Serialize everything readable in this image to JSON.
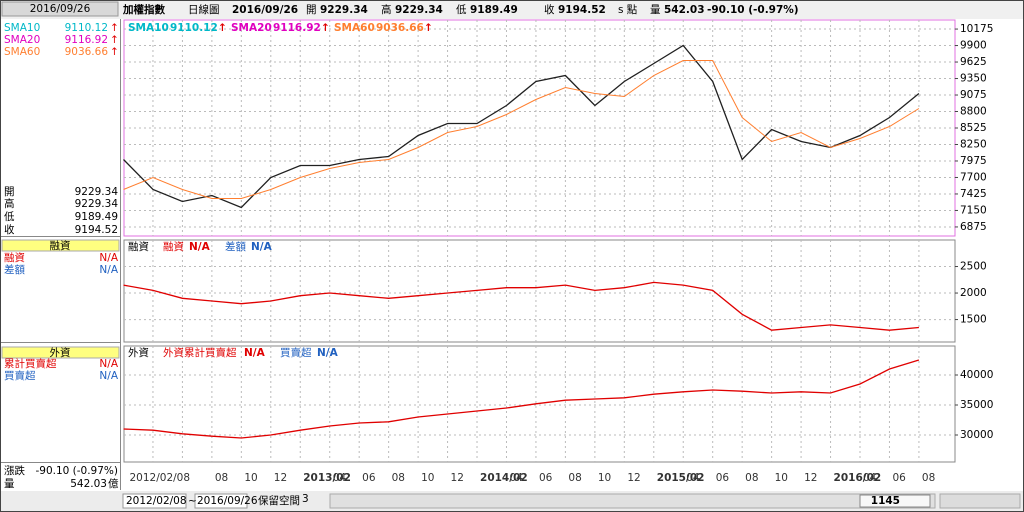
{
  "header": {
    "title": "加權指數",
    "period": "日線圖",
    "date": "2016/09/26",
    "open_label": "開",
    "open": 9229.34,
    "high_label": "高",
    "high": 9229.34,
    "low_label": "低",
    "low": 9189.49,
    "close_label": "收",
    "close": 9194.52,
    "unit": "s 點",
    "volume_label": "量",
    "volume": 542.03,
    "change": "-90.10 (-0.97%)"
  },
  "left_panel": {
    "change_label": "漲跌",
    "volume_unit": "億"
  },
  "chart_data": [
    {
      "type": "line",
      "trend_arrow": "↑",
      "categories": [
        "2012/02/08",
        null,
        null,
        "08",
        "10",
        "12",
        "2013/02",
        "04",
        "06",
        "08",
        "10",
        "12",
        "2014/02",
        "04",
        "06",
        "08",
        "10",
        "12",
        "2015/02",
        "04",
        "06",
        "08",
        "10",
        "12",
        "2016/02",
        "04",
        "06",
        "08"
      ],
      "ylim": [
        6724,
        10326
      ],
      "yticks": [
        6875,
        7150,
        7425,
        7700,
        7975,
        8250,
        8525,
        8800,
        9075,
        9350,
        9625,
        9900,
        10175
      ],
      "grid": true,
      "series": [
        {
          "color": "#202020",
          "values": [
            8000,
            7500,
            7300,
            7400,
            7200,
            7700,
            7900,
            7900,
            8000,
            8050,
            8400,
            8600,
            8600,
            8900,
            9300,
            9400,
            8900,
            9300,
            9600,
            9900,
            9300,
            8000,
            8500,
            8300,
            8200,
            8400,
            8700,
            9100
          ]
        },
        {
          "name": "SMA10",
          "last": 9110.12,
          "color": "#00b8c8"
        },
        {
          "name": "SMA20",
          "last": 9116.92,
          "color": "#e000c0"
        },
        {
          "name": "SMA60",
          "last": 9036.66,
          "color": "#ff7f30",
          "values": [
            7500,
            7700,
            7500,
            7350,
            7350,
            7500,
            7700,
            7850,
            7950,
            8000,
            8200,
            8450,
            8550,
            8750,
            9000,
            9200,
            9100,
            9050,
            9400,
            9650,
            9650,
            8700,
            8300,
            8450,
            8200,
            8350,
            8550,
            8850
          ]
        }
      ]
    },
    {
      "type": "line",
      "title": "融資",
      "legend": [
        {
          "name": "融資",
          "value": "N/A",
          "color": "#e00000"
        },
        {
          "name": "差額",
          "value": "N/A",
          "color": "#2060c0"
        }
      ],
      "ylim": [
        1077,
        3000
      ],
      "yticks": [
        1500,
        2000,
        2500
      ],
      "grid": true,
      "series": [
        {
          "color": "#e00000",
          "values": [
            2150,
            2050,
            1900,
            1850,
            1800,
            1850,
            1950,
            2000,
            1950,
            1900,
            1950,
            2000,
            2050,
            2100,
            2100,
            2150,
            2050,
            2100,
            2200,
            2150,
            2050,
            1600,
            1300,
            1350,
            1400,
            1350,
            1300,
            1350
          ]
        }
      ]
    },
    {
      "type": "line",
      "title": "外資",
      "legend": [
        {
          "name": "外資累計買賣超",
          "value": "N/A",
          "color": "#e00000"
        },
        {
          "name": "買賣超",
          "value": "N/A",
          "color": "#2060c0"
        }
      ],
      "side_labels": [
        "累計買賣超",
        "買賣超"
      ],
      "ylim": [
        25500,
        44833
      ],
      "yticks": [
        30000,
        35000,
        40000
      ],
      "grid": true,
      "series": [
        {
          "color": "#e00000",
          "values": [
            31000,
            30800,
            30200,
            29800,
            29500,
            30000,
            30800,
            31500,
            32000,
            32200,
            33000,
            33500,
            34000,
            34500,
            35200,
            35800,
            36000,
            36200,
            36800,
            37200,
            37500,
            37300,
            37000,
            37200,
            37000,
            38500,
            41000,
            42500
          ]
        }
      ]
    }
  ],
  "bottom_bar": {
    "start": "2012/02/08",
    "separator": "~",
    "end": "2016/09/26",
    "reserve_label": "保留空間",
    "reserve": 3,
    "position": 1145
  }
}
